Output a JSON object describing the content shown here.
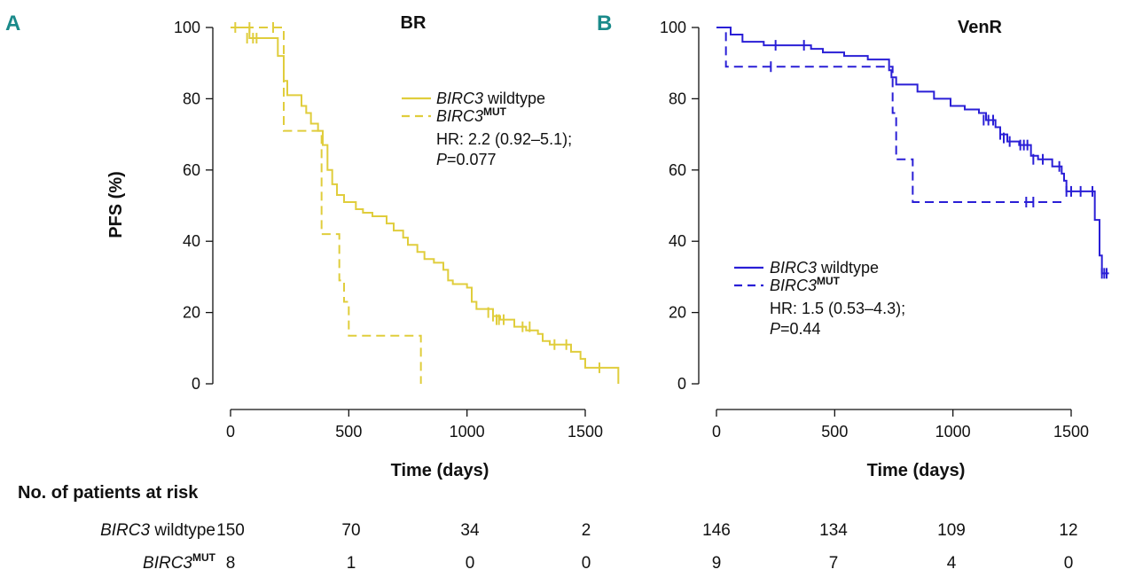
{
  "figure": {
    "risk_table": {
      "heading": "No. of patients at risk",
      "rows": [
        {
          "gene": "BIRC3",
          "suffix": " wildtype",
          "sup": "",
          "A": [
            150,
            70,
            34,
            2
          ],
          "B": [
            146,
            134,
            109,
            12
          ]
        },
        {
          "gene": "BIRC3",
          "suffix": "",
          "sup": "MUT",
          "A": [
            8,
            1,
            0,
            0
          ],
          "B": [
            9,
            7,
            4,
            0
          ]
        }
      ]
    }
  },
  "chart_data": [
    {
      "type": "line",
      "panel": "A",
      "title": "BR",
      "xlabel": "Time (days)",
      "ylabel": "PFS (%)",
      "xlim": [
        0,
        1650
      ],
      "ylim": [
        0,
        100
      ],
      "xticks": [
        0,
        500,
        1000,
        1500
      ],
      "yticks": [
        0,
        20,
        40,
        60,
        80,
        100
      ],
      "color": "#e0cd3c",
      "legend": {
        "entries": [
          {
            "gene": "BIRC3",
            "suffix": " wildtype",
            "sup": "",
            "style": "solid"
          },
          {
            "gene": "BIRC3",
            "suffix": "",
            "sup": "MUT",
            "style": "dashed"
          }
        ],
        "hr_text": "HR: 2.2 (0.92–5.1);",
        "p_label": "P",
        "p_value": "=0.077"
      },
      "series": [
        {
          "name": "BIRC3 wildtype",
          "style": "solid",
          "steps": [
            [
              0,
              100
            ],
            [
              80,
              97
            ],
            [
              200,
              92
            ],
            [
              225,
              85
            ],
            [
              240,
              81
            ],
            [
              300,
              78
            ],
            [
              320,
              76
            ],
            [
              340,
              73
            ],
            [
              370,
              71
            ],
            [
              390,
              67
            ],
            [
              410,
              60
            ],
            [
              430,
              56
            ],
            [
              450,
              53
            ],
            [
              480,
              51
            ],
            [
              530,
              49
            ],
            [
              560,
              48
            ],
            [
              600,
              47
            ],
            [
              660,
              45
            ],
            [
              690,
              43
            ],
            [
              730,
              41
            ],
            [
              750,
              39
            ],
            [
              790,
              37
            ],
            [
              820,
              35
            ],
            [
              860,
              34
            ],
            [
              900,
              32
            ],
            [
              920,
              29
            ],
            [
              940,
              28
            ],
            [
              1000,
              27
            ],
            [
              1020,
              23
            ],
            [
              1040,
              21
            ],
            [
              1110,
              19
            ],
            [
              1140,
              18
            ],
            [
              1200,
              16
            ],
            [
              1250,
              15
            ],
            [
              1300,
              14
            ],
            [
              1320,
              12
            ],
            [
              1350,
              11
            ],
            [
              1440,
              9
            ],
            [
              1480,
              7
            ],
            [
              1500,
              4.5
            ],
            [
              1640,
              4.5
            ],
            [
              1640,
              0
            ]
          ],
          "censor": [
            [
              20,
              100
            ],
            [
              70,
              97
            ],
            [
              95,
              97
            ],
            [
              110,
              97
            ],
            [
              1090,
              20
            ],
            [
              1110,
              19
            ],
            [
              1125,
              18
            ],
            [
              1135,
              18
            ],
            [
              1155,
              18
            ],
            [
              1235,
              16
            ],
            [
              1265,
              16
            ],
            [
              1370,
              11
            ],
            [
              1420,
              11
            ],
            [
              1560,
              4.5
            ]
          ]
        },
        {
          "name": "BIRC3MUT",
          "style": "dashed",
          "steps": [
            [
              0,
              100
            ],
            [
              225,
              71
            ],
            [
              385,
              42
            ],
            [
              460,
              29
            ],
            [
              480,
              23
            ],
            [
              500,
              13.5
            ],
            [
              805,
              0
            ]
          ],
          "censor": [
            [
              80,
              100
            ],
            [
              180,
              100
            ]
          ]
        }
      ]
    },
    {
      "type": "line",
      "panel": "B",
      "title": "VenR",
      "xlabel": "Time (days)",
      "ylabel": "",
      "xlim": [
        0,
        1650
      ],
      "ylim": [
        0,
        100
      ],
      "xticks": [
        0,
        500,
        1000,
        1500
      ],
      "yticks": [
        0,
        20,
        40,
        60,
        80,
        100
      ],
      "color": "#2a1fd6",
      "legend": {
        "entries": [
          {
            "gene": "BIRC3",
            "suffix": " wildtype",
            "sup": "",
            "style": "solid"
          },
          {
            "gene": "BIRC3",
            "suffix": "",
            "sup": "MUT",
            "style": "dashed"
          }
        ],
        "hr_text": "HR: 1.5 (0.53–4.3);",
        "p_label": "P",
        "p_value": "=0.44"
      },
      "series": [
        {
          "name": "BIRC3 wildtype",
          "style": "solid",
          "steps": [
            [
              0,
              100
            ],
            [
              60,
              98
            ],
            [
              110,
              96
            ],
            [
              200,
              95
            ],
            [
              400,
              94
            ],
            [
              450,
              93
            ],
            [
              540,
              92
            ],
            [
              640,
              91
            ],
            [
              730,
              88
            ],
            [
              740,
              86
            ],
            [
              760,
              84
            ],
            [
              850,
              82
            ],
            [
              920,
              80
            ],
            [
              990,
              78
            ],
            [
              1050,
              77
            ],
            [
              1110,
              76
            ],
            [
              1140,
              74
            ],
            [
              1180,
              72
            ],
            [
              1200,
              70
            ],
            [
              1230,
              68
            ],
            [
              1280,
              67
            ],
            [
              1330,
              64
            ],
            [
              1360,
              63
            ],
            [
              1420,
              61
            ],
            [
              1460,
              59
            ],
            [
              1470,
              57
            ],
            [
              1480,
              54
            ],
            [
              1600,
              46
            ],
            [
              1620,
              36
            ],
            [
              1630,
              31
            ],
            [
              1660,
              31
            ]
          ],
          "censor": [
            [
              250,
              95
            ],
            [
              370,
              95
            ],
            [
              1130,
              74
            ],
            [
              1150,
              74
            ],
            [
              1170,
              74
            ],
            [
              1200,
              70
            ],
            [
              1215,
              69
            ],
            [
              1240,
              68
            ],
            [
              1285,
              67
            ],
            [
              1300,
              67
            ],
            [
              1315,
              67
            ],
            [
              1340,
              63
            ],
            [
              1380,
              63
            ],
            [
              1450,
              61
            ],
            [
              1480,
              54
            ],
            [
              1500,
              54
            ],
            [
              1540,
              54
            ],
            [
              1590,
              54
            ],
            [
              1630,
              31
            ],
            [
              1640,
              31
            ],
            [
              1650,
              31
            ]
          ]
        },
        {
          "name": "BIRC3MUT",
          "style": "dashed",
          "steps": [
            [
              0,
              100
            ],
            [
              40,
              89
            ],
            [
              730,
              89
            ],
            [
              745,
              76
            ],
            [
              760,
              63
            ],
            [
              830,
              51
            ],
            [
              1460,
              51
            ]
          ],
          "censor": [
            [
              230,
              89
            ],
            [
              1310,
              51
            ],
            [
              1340,
              51
            ]
          ]
        }
      ]
    }
  ]
}
